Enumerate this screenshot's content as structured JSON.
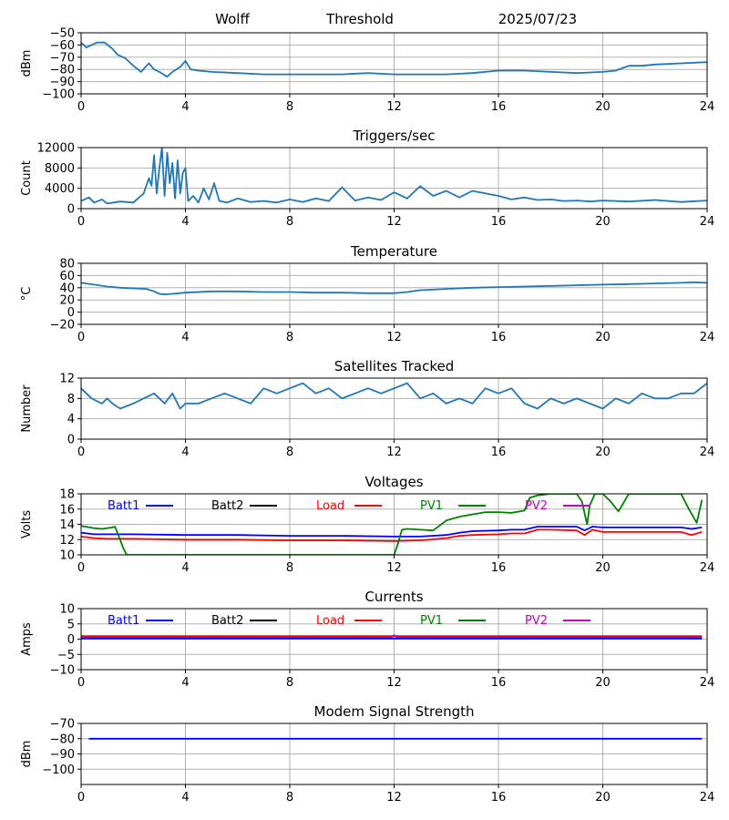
{
  "header": {
    "station": "Wolff",
    "mode": "Threshold",
    "date": "2025/07/23"
  },
  "colors": {
    "default_line": "#1f77b4",
    "batt1": "#0000ff",
    "batt2": "#000000",
    "load": "#ff0000",
    "pv1": "#008000",
    "pv2": "#bf00bf",
    "grid": "#b0b0b0"
  },
  "legend_labels": [
    "Batt1",
    "Batt2",
    "Load",
    "PV1",
    "PV2"
  ],
  "chart_data": [
    {
      "id": "threshold",
      "type": "line",
      "title": "",
      "ylabel": "dBm",
      "xlim": [
        0,
        24
      ],
      "ylim": [
        -100,
        -50
      ],
      "xticks": [
        "0",
        "4",
        "8",
        "12",
        "16",
        "20",
        "24"
      ],
      "yticks": [
        "−50",
        "−60",
        "−70",
        "−80",
        "−90",
        "−100"
      ],
      "grid": true,
      "series": [
        {
          "color": "#1f77b4",
          "x": [
            0,
            0.2,
            0.4,
            0.6,
            0.9,
            1.2,
            1.4,
            1.7,
            2.0,
            2.3,
            2.6,
            2.8,
            3.0,
            3.3,
            3.5,
            3.8,
            4.0,
            4.2,
            4.5,
            5,
            6,
            7,
            8,
            9,
            10,
            11,
            12,
            13,
            14,
            15,
            16,
            17,
            18,
            19,
            20,
            20.5,
            21,
            21.5,
            22,
            23,
            24
          ],
          "y": [
            -58,
            -62,
            -60,
            -58,
            -58,
            -63,
            -68,
            -71,
            -77,
            -82,
            -75,
            -80,
            -82,
            -86,
            -82,
            -78,
            -73,
            -80,
            -81,
            -82,
            -83,
            -84,
            -84,
            -84,
            -84,
            -83,
            -84,
            -84,
            -84,
            -83,
            -81,
            -81,
            -82,
            -83,
            -82,
            -81,
            -77,
            -77,
            -76,
            -75,
            -74
          ]
        }
      ]
    },
    {
      "id": "triggers",
      "type": "line",
      "title": "Triggers/sec",
      "ylabel": "Count",
      "xlim": [
        0,
        24
      ],
      "ylim": [
        0,
        12000
      ],
      "xticks": [
        "0",
        "4",
        "8",
        "12",
        "16",
        "20",
        "24"
      ],
      "yticks": [
        "12000",
        "8000",
        "4000",
        "0"
      ],
      "grid": true,
      "series": [
        {
          "color": "#1f77b4",
          "x": [
            0,
            0.3,
            0.5,
            0.8,
            1.0,
            1.5,
            2.0,
            2.4,
            2.6,
            2.7,
            2.8,
            2.9,
            3.0,
            3.1,
            3.2,
            3.3,
            3.4,
            3.5,
            3.6,
            3.7,
            3.8,
            3.9,
            4.0,
            4.1,
            4.3,
            4.5,
            4.7,
            4.9,
            5.1,
            5.3,
            5.6,
            6.0,
            6.5,
            7.0,
            7.5,
            8.0,
            8.5,
            9.0,
            9.5,
            10.0,
            10.5,
            11.0,
            11.5,
            12.0,
            12.5,
            13.0,
            13.5,
            14.0,
            14.5,
            15.0,
            15.5,
            16.0,
            16.5,
            17.0,
            17.5,
            18.0,
            18.5,
            19.0,
            19.5,
            20.0,
            21.0,
            22.0,
            23.0,
            24.0
          ],
          "y": [
            1500,
            2200,
            1200,
            1800,
            1000,
            1400,
            1200,
            3000,
            6000,
            4500,
            10500,
            3000,
            8000,
            12000,
            2500,
            11000,
            5000,
            9000,
            2000,
            9500,
            3000,
            7000,
            8000,
            1500,
            2500,
            1200,
            4000,
            1800,
            5000,
            1500,
            1200,
            2000,
            1300,
            1500,
            1200,
            1800,
            1300,
            2000,
            1500,
            4200,
            1600,
            2200,
            1700,
            3200,
            2000,
            4400,
            2500,
            3500,
            2200,
            3500,
            3000,
            2500,
            1800,
            2200,
            1700,
            1800,
            1500,
            1600,
            1400,
            1600,
            1400,
            1700,
            1300,
            1600
          ]
        }
      ]
    },
    {
      "id": "temperature",
      "type": "line",
      "title": "Temperature",
      "ylabel": "°C",
      "xlim": [
        0,
        24
      ],
      "ylim": [
        -20,
        80
      ],
      "xticks": [
        "0",
        "4",
        "8",
        "12",
        "16",
        "20",
        "24"
      ],
      "yticks": [
        "80",
        "60",
        "40",
        "20",
        "0",
        "−20"
      ],
      "grid": true,
      "series": [
        {
          "color": "#1f77b4",
          "x": [
            0,
            0.5,
            1.0,
            1.5,
            2.0,
            2.5,
            2.8,
            3.0,
            3.2,
            3.5,
            4.0,
            5,
            6,
            7,
            8,
            9,
            10,
            11,
            12,
            12.5,
            13,
            14,
            15,
            16,
            17,
            18,
            19,
            20,
            21,
            22,
            23,
            23.5,
            24
          ],
          "y": [
            48,
            45,
            42,
            40,
            39,
            38,
            34,
            30,
            29,
            30,
            32,
            34,
            34,
            33,
            33,
            32,
            32,
            31,
            31,
            33,
            36,
            38,
            40,
            41,
            42,
            43,
            44,
            45,
            46,
            47,
            48,
            49,
            48
          ]
        }
      ]
    },
    {
      "id": "satellites",
      "type": "line",
      "title": "Satellites Tracked",
      "ylabel": "Number",
      "xlim": [
        0,
        24
      ],
      "ylim": [
        0,
        12
      ],
      "xticks": [
        "0",
        "4",
        "8",
        "12",
        "16",
        "20",
        "24"
      ],
      "yticks": [
        "12",
        "8",
        "4",
        "0"
      ],
      "grid": true,
      "series": [
        {
          "color": "#1f77b4",
          "x": [
            0,
            0.2,
            0.4,
            0.8,
            1.0,
            1.2,
            1.5,
            2.0,
            2.4,
            2.8,
            3.0,
            3.2,
            3.5,
            3.8,
            4.0,
            4.5,
            5.0,
            5.5,
            6.0,
            6.5,
            7.0,
            7.5,
            8.0,
            8.5,
            9.0,
            9.5,
            10.0,
            10.5,
            11.0,
            11.5,
            12.0,
            12.5,
            13.0,
            13.5,
            14.0,
            14.5,
            15.0,
            15.5,
            16.0,
            16.5,
            17.0,
            17.5,
            18.0,
            18.5,
            19.0,
            19.5,
            20.0,
            20.5,
            21.0,
            21.5,
            22.0,
            22.5,
            23.0,
            23.5,
            24.0
          ],
          "y": [
            10,
            9,
            8,
            7,
            8,
            7,
            6,
            7,
            8,
            9,
            8,
            7,
            9,
            6,
            7,
            7,
            8,
            9,
            8,
            7,
            10,
            9,
            10,
            11,
            9,
            10,
            8,
            9,
            10,
            9,
            10,
            11,
            8,
            9,
            7,
            8,
            7,
            10,
            9,
            10,
            7,
            6,
            8,
            7,
            8,
            7,
            6,
            8,
            7,
            9,
            8,
            8,
            9,
            9,
            11
          ]
        }
      ]
    },
    {
      "id": "voltages",
      "type": "line",
      "title": "Voltages",
      "ylabel": "Volts",
      "xlim": [
        0,
        24
      ],
      "ylim": [
        10,
        18
      ],
      "xticks": [
        "0",
        "4",
        "8",
        "12",
        "16",
        "20",
        "24"
      ],
      "yticks": [
        "18",
        "16",
        "14",
        "12",
        "10"
      ],
      "grid": true,
      "legend": "top",
      "series": [
        {
          "name": "Batt1",
          "color": "#0000ff",
          "x": [
            0,
            0.5,
            1,
            2,
            4,
            6,
            8,
            10,
            12,
            13,
            14,
            14.5,
            15,
            16,
            16.5,
            17,
            17.5,
            18,
            19,
            19.3,
            19.6,
            20,
            21,
            22,
            23,
            23.4,
            23.8
          ],
          "y": [
            12.9,
            12.7,
            12.7,
            12.7,
            12.6,
            12.6,
            12.5,
            12.5,
            12.4,
            12.4,
            12.6,
            12.9,
            13.1,
            13.2,
            13.3,
            13.3,
            13.7,
            13.7,
            13.7,
            13.2,
            13.7,
            13.6,
            13.6,
            13.6,
            13.6,
            13.4,
            13.6
          ]
        },
        {
          "name": "Load",
          "color": "#ff0000",
          "x": [
            0,
            0.5,
            1,
            2,
            4,
            6,
            8,
            10,
            12,
            13,
            14,
            14.5,
            15,
            16,
            16.5,
            17,
            17.5,
            18,
            19,
            19.3,
            19.6,
            20,
            21,
            22,
            23,
            23.4,
            23.8
          ],
          "y": [
            12.4,
            12.2,
            12.1,
            12.1,
            12.0,
            12.0,
            11.9,
            11.9,
            11.8,
            11.9,
            12.2,
            12.5,
            12.6,
            12.7,
            12.8,
            12.8,
            13.3,
            13.3,
            13.2,
            12.6,
            13.3,
            13.0,
            13.0,
            13.0,
            13.0,
            12.6,
            13.0
          ]
        },
        {
          "name": "PV1",
          "color": "#008000",
          "x": [
            0,
            0.5,
            0.8,
            1.2,
            1.3,
            1.5,
            1.6,
            1.75,
            12.0,
            12.15,
            12.3,
            12.5,
            13.0,
            13.5,
            14.0,
            14.5,
            15.0,
            15.5,
            16.0,
            16.5,
            17.0,
            17.2,
            17.5,
            18.0,
            18.3,
            18.5,
            18.7,
            19.0,
            19.2,
            19.4,
            19.5,
            19.7,
            19.9,
            20.0,
            20.3,
            20.6,
            21.0,
            21.5,
            22.0,
            22.5,
            23.0,
            23.3,
            23.6,
            23.8
          ],
          "y": [
            13.8,
            13.5,
            13.4,
            13.6,
            13.7,
            12.0,
            11.0,
            10.0,
            10.0,
            11.5,
            13.3,
            13.4,
            13.3,
            13.2,
            14.5,
            15.0,
            15.3,
            15.6,
            15.6,
            15.5,
            15.8,
            17.5,
            17.8,
            18.0,
            18.0,
            18.0,
            18.0,
            18.0,
            17.0,
            14.0,
            16.5,
            18.0,
            18.0,
            18.0,
            17.0,
            15.7,
            18.0,
            18.0,
            18.0,
            18.0,
            18.0,
            16.0,
            14.2,
            17.2
          ]
        }
      ]
    },
    {
      "id": "currents",
      "type": "line",
      "title": "Currents",
      "ylabel": "Amps",
      "xlim": [
        0,
        24
      ],
      "ylim": [
        -10,
        10
      ],
      "xticks": [
        "0",
        "4",
        "8",
        "12",
        "16",
        "20",
        "24"
      ],
      "yticks": [
        "10",
        "5",
        "0",
        "−5",
        "−10"
      ],
      "grid": true,
      "legend": "top",
      "series": [
        {
          "name": "Load",
          "color": "#ff0000",
          "x": [
            0,
            4,
            8,
            12,
            16,
            20,
            23.8
          ],
          "y": [
            1.0,
            1.0,
            1.0,
            1.0,
            1.0,
            1.0,
            1.0
          ]
        },
        {
          "name": "PV2",
          "color": "#bf00bf",
          "x": [
            0,
            4,
            8,
            11.9,
            12,
            12.1,
            16,
            20,
            23.8
          ],
          "y": [
            0.5,
            0.5,
            0.5,
            0.5,
            1.3,
            0.6,
            0.6,
            0.6,
            0.6
          ]
        },
        {
          "name": "Batt1",
          "color": "#0000ff",
          "x": [
            0,
            4,
            8,
            12,
            16,
            20,
            23.8
          ],
          "y": [
            0.2,
            0.2,
            0.2,
            0.2,
            0.2,
            0.2,
            0.2
          ]
        }
      ]
    },
    {
      "id": "modem",
      "type": "line",
      "title": "Modem Signal Strength",
      "ylabel": "dBm",
      "xlim": [
        0,
        24
      ],
      "ylim": [
        -110,
        -70
      ],
      "xticks": [
        "0",
        "4",
        "8",
        "12",
        "16",
        "20",
        "24"
      ],
      "yticks": [
        "−70",
        "−80",
        "−90",
        "−100"
      ],
      "grid": true,
      "series": [
        {
          "color": "#0000ff",
          "x": [
            0.3,
            23.8
          ],
          "y": [
            -80,
            -80
          ]
        }
      ]
    }
  ]
}
